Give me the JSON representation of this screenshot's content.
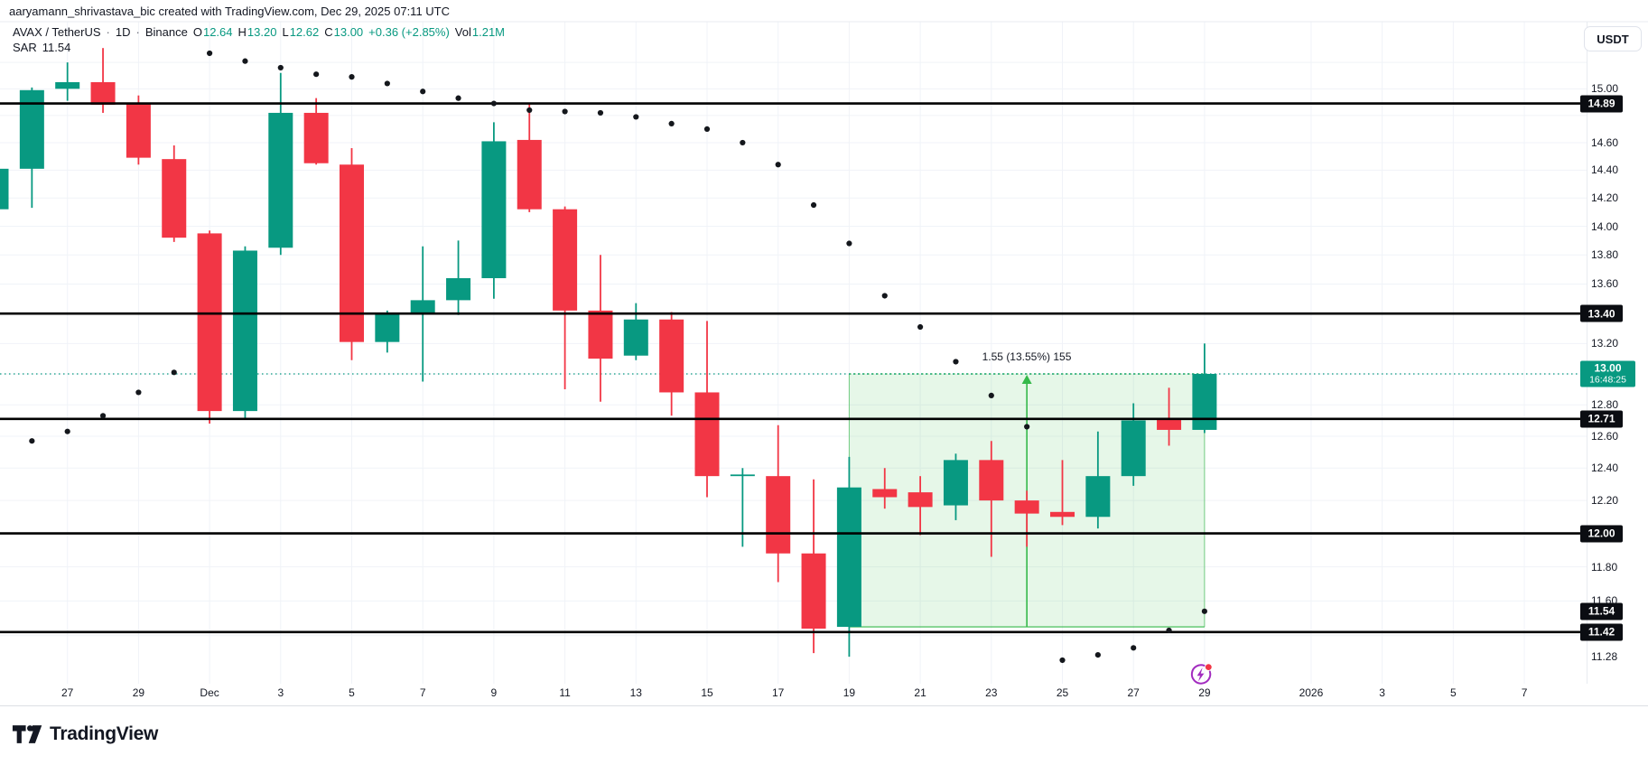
{
  "attribution": "aaryamann_shrivastava_bic created with TradingView.com, Dec 29, 2025 07:11 UTC",
  "header": {
    "symbol": "AVAX / TetherUS",
    "separator": "·",
    "timeframe": "1D",
    "exchange": "Binance",
    "ohlc": {
      "o_label": "O",
      "o": "12.64",
      "h_label": "H",
      "h": "13.20",
      "l_label": "L",
      "l": "12.62",
      "c_label": "C",
      "c": "13.00"
    },
    "change": "+0.36 (+2.85%)",
    "volume_label": "Vol",
    "volume": "1.21M",
    "indicator": {
      "name": "SAR",
      "value": "11.54"
    }
  },
  "price_axis": {
    "currency": "USDT",
    "ticks": [
      "15.00",
      "14.60",
      "14.40",
      "14.20",
      "14.00",
      "13.80",
      "13.60",
      "13.20",
      "12.80",
      "12.60",
      "12.40",
      "12.20",
      "11.80",
      "11.60",
      "11.28"
    ],
    "level_labels": [
      {
        "text": "14.89"
      },
      {
        "text": "13.40"
      },
      {
        "text": "12.71"
      },
      {
        "text": "12.00"
      },
      {
        "text": "11.54"
      },
      {
        "text": "11.42"
      }
    ],
    "current": {
      "price_text": "13.00",
      "price": 13.0,
      "countdown": "16:48:25"
    }
  },
  "time_axis": {
    "ticks": [
      {
        "label": "27",
        "day": 2
      },
      {
        "label": "29",
        "day": 4
      },
      {
        "label": "Dec",
        "day": 6
      },
      {
        "label": "3",
        "day": 8
      },
      {
        "label": "5",
        "day": 10
      },
      {
        "label": "7",
        "day": 12
      },
      {
        "label": "9",
        "day": 14
      },
      {
        "label": "11",
        "day": 16
      },
      {
        "label": "13",
        "day": 18
      },
      {
        "label": "15",
        "day": 20
      },
      {
        "label": "17",
        "day": 22
      },
      {
        "label": "19",
        "day": 24
      },
      {
        "label": "21",
        "day": 26
      },
      {
        "label": "23",
        "day": 28
      },
      {
        "label": "25",
        "day": 30
      },
      {
        "label": "27",
        "day": 32
      },
      {
        "label": "29",
        "day": 34
      },
      {
        "label": "2026",
        "day": 37
      },
      {
        "label": "3",
        "day": 39
      },
      {
        "label": "5",
        "day": 41
      },
      {
        "label": "7",
        "day": 43
      }
    ]
  },
  "chart_data": {
    "type": "candlestick",
    "title": "AVAX / TetherUS · 1D · Binance",
    "scale": "log",
    "price_range_visible": [
      11.11,
      15.41
    ],
    "candles": [
      {
        "date": "Nov 25",
        "o": 14.12,
        "h": 14.43,
        "l": 14.1,
        "c": 14.41
      },
      {
        "date": "Nov 26",
        "o": 14.41,
        "h": 15.01,
        "l": 14.13,
        "c": 14.99
      },
      {
        "date": "Nov 27",
        "o": 15.0,
        "h": 15.2,
        "l": 14.91,
        "c": 15.05
      },
      {
        "date": "Nov 28",
        "o": 15.05,
        "h": 15.31,
        "l": 14.82,
        "c": 14.88
      },
      {
        "date": "Nov 29",
        "o": 14.89,
        "h": 14.95,
        "l": 14.44,
        "c": 14.49
      },
      {
        "date": "Nov 30",
        "o": 14.48,
        "h": 14.58,
        "l": 13.89,
        "c": 13.92
      },
      {
        "date": "Dec 1",
        "o": 13.95,
        "h": 13.97,
        "l": 12.68,
        "c": 12.76
      },
      {
        "date": "Dec 2",
        "o": 12.76,
        "h": 13.86,
        "l": 12.71,
        "c": 13.83
      },
      {
        "date": "Dec 3",
        "o": 13.85,
        "h": 15.12,
        "l": 13.8,
        "c": 14.82
      },
      {
        "date": "Dec 4",
        "o": 14.82,
        "h": 14.93,
        "l": 14.44,
        "c": 14.45
      },
      {
        "date": "Dec 5",
        "o": 14.44,
        "h": 14.56,
        "l": 13.09,
        "c": 13.21
      },
      {
        "date": "Dec 6",
        "o": 13.21,
        "h": 13.42,
        "l": 13.14,
        "c": 13.4
      },
      {
        "date": "Dec 7",
        "o": 13.4,
        "h": 13.86,
        "l": 12.95,
        "c": 13.49
      },
      {
        "date": "Dec 8",
        "o": 13.49,
        "h": 13.9,
        "l": 13.39,
        "c": 13.64
      },
      {
        "date": "Dec 9",
        "o": 13.64,
        "h": 14.75,
        "l": 13.5,
        "c": 14.61
      },
      {
        "date": "Dec 10",
        "o": 14.62,
        "h": 14.89,
        "l": 14.1,
        "c": 14.12
      },
      {
        "date": "Dec 11",
        "o": 14.12,
        "h": 14.14,
        "l": 12.9,
        "c": 13.42
      },
      {
        "date": "Dec 12",
        "o": 13.42,
        "h": 13.8,
        "l": 12.82,
        "c": 13.1
      },
      {
        "date": "Dec 13",
        "o": 13.12,
        "h": 13.47,
        "l": 13.09,
        "c": 13.36
      },
      {
        "date": "Dec 14",
        "o": 13.36,
        "h": 13.41,
        "l": 12.73,
        "c": 12.88
      },
      {
        "date": "Dec 15",
        "o": 12.88,
        "h": 13.35,
        "l": 12.22,
        "c": 12.35
      },
      {
        "date": "Dec 16",
        "o": 12.35,
        "h": 12.4,
        "l": 11.92,
        "c": 12.36
      },
      {
        "date": "Dec 17",
        "o": 12.35,
        "h": 12.67,
        "l": 11.71,
        "c": 11.88
      },
      {
        "date": "Dec 18",
        "o": 11.88,
        "h": 12.33,
        "l": 11.3,
        "c": 11.44
      },
      {
        "date": "Dec 19",
        "o": 11.45,
        "h": 12.47,
        "l": 11.28,
        "c": 12.28
      },
      {
        "date": "Dec 20",
        "o": 12.27,
        "h": 12.4,
        "l": 12.15,
        "c": 12.22
      },
      {
        "date": "Dec 21",
        "o": 12.25,
        "h": 12.35,
        "l": 11.99,
        "c": 12.16
      },
      {
        "date": "Dec 22",
        "o": 12.17,
        "h": 12.49,
        "l": 12.08,
        "c": 12.45
      },
      {
        "date": "Dec 23",
        "o": 12.45,
        "h": 12.57,
        "l": 11.86,
        "c": 12.2
      },
      {
        "date": "Dec 24",
        "o": 12.2,
        "h": 12.26,
        "l": 11.92,
        "c": 12.12
      },
      {
        "date": "Dec 25",
        "o": 12.13,
        "h": 12.45,
        "l": 12.05,
        "c": 12.1
      },
      {
        "date": "Dec 26",
        "o": 12.1,
        "h": 12.63,
        "l": 12.03,
        "c": 12.35
      },
      {
        "date": "Dec 27",
        "o": 12.35,
        "h": 12.81,
        "l": 12.29,
        "c": 12.7
      },
      {
        "date": "Dec 28",
        "o": 12.71,
        "h": 12.91,
        "l": 12.54,
        "c": 12.64
      },
      {
        "date": "Dec 29",
        "o": 12.64,
        "h": 13.2,
        "l": 12.62,
        "c": 13.0
      }
    ],
    "sar_dots": [
      [
        1,
        12.57
      ],
      [
        2,
        12.63
      ],
      [
        3,
        12.73
      ],
      [
        4,
        12.88
      ],
      [
        5,
        13.01
      ],
      [
        6,
        15.27
      ],
      [
        7,
        15.21
      ],
      [
        8,
        15.16
      ],
      [
        9,
        15.11
      ],
      [
        10,
        15.09
      ],
      [
        11,
        15.04
      ],
      [
        12,
        14.98
      ],
      [
        13,
        14.93
      ],
      [
        14,
        14.89
      ],
      [
        15,
        14.84
      ],
      [
        16,
        14.83
      ],
      [
        17,
        14.82
      ],
      [
        18,
        14.79
      ],
      [
        19,
        14.74
      ],
      [
        20,
        14.7
      ],
      [
        21,
        14.6
      ],
      [
        22,
        14.44
      ],
      [
        23,
        14.15
      ],
      [
        24,
        13.88
      ],
      [
        25,
        13.52
      ],
      [
        26,
        13.31
      ],
      [
        27,
        13.08
      ],
      [
        28,
        12.86
      ],
      [
        29,
        12.66
      ],
      [
        30,
        11.26
      ],
      [
        31,
        11.29
      ],
      [
        32,
        11.33
      ],
      [
        33,
        11.43
      ],
      [
        34,
        11.54
      ]
    ],
    "horizontal_levels": [
      14.89,
      13.4,
      12.71,
      12.0,
      11.42
    ],
    "current_price": 13.0,
    "grid": true
  },
  "projection_box": {
    "label": "1.55 (13.55%) 155",
    "from_day": 24,
    "to_day": 34,
    "top_price": 13.0,
    "bottom_price": 11.45
  },
  "footer": {
    "logo_text": "TradingView"
  },
  "colors": {
    "up": "#089981",
    "down": "#F23645",
    "level_line": "#000000",
    "grid": "#f0f3f8",
    "text": "#131722",
    "sar_dot": "#14171c",
    "box_green": "#35b94a",
    "box_fill": "rgba(80,200,90,0.14)",
    "current_line": "#089981",
    "purple": "#a22bbf",
    "badge_red": "#F23645"
  }
}
